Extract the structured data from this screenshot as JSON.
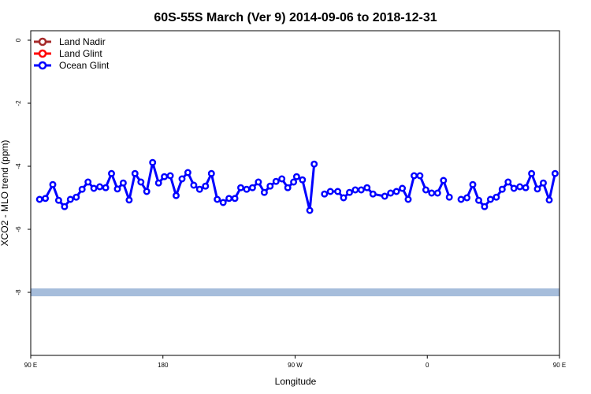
{
  "chart_data": {
    "type": "line",
    "title": "60S-55S March (Ver 9)   2014-09-06 to 2018-12-31",
    "xlabel": "Longitude",
    "ylabel": "XCO2 - MLO trend (ppm)",
    "xlim": [
      90,
      450
    ],
    "ylim": [
      -10,
      0.3
    ],
    "x_ticks": [
      {
        "value": 90,
        "label": "90 E"
      },
      {
        "value": 180,
        "label": "180"
      },
      {
        "value": 270,
        "label": "90 W"
      },
      {
        "value": 360,
        "label": "0"
      },
      {
        "value": 450,
        "label": "90 E"
      },
      {
        "value": 540,
        "label": "180"
      }
    ],
    "y_ticks": [
      {
        "value": 0,
        "label": "0"
      },
      {
        "value": -2,
        "label": "-2"
      },
      {
        "value": -4,
        "label": "-4"
      },
      {
        "value": -6,
        "label": "-6"
      },
      {
        "value": -8,
        "label": "-8"
      }
    ],
    "legend": {
      "placement": "top-left",
      "entries": [
        {
          "label": "Land Nadir",
          "color": "#a52a2a"
        },
        {
          "label": "Land Glint",
          "color": "#ff0000"
        },
        {
          "label": "Ocean Glint",
          "color": "#0000ff"
        }
      ]
    },
    "band": {
      "y_center": -8,
      "color": "#a6bddb"
    },
    "series": [
      {
        "name": "Ocean Glint",
        "color": "#0000ff",
        "segments": [
          [
            [
              96,
              -5.05
            ],
            [
              100,
              -5.02
            ],
            [
              105,
              -4.58
            ],
            [
              109,
              -5.08
            ],
            [
              113,
              -5.28
            ],
            [
              117,
              -5.05
            ],
            [
              121,
              -4.98
            ],
            [
              125,
              -4.73
            ],
            [
              129,
              -4.5
            ],
            [
              133,
              -4.7
            ],
            [
              137,
              -4.65
            ],
            [
              141,
              -4.68
            ],
            [
              145,
              -4.23
            ],
            [
              149,
              -4.72
            ],
            [
              153,
              -4.53
            ],
            [
              157,
              -5.07
            ],
            [
              161,
              -4.23
            ],
            [
              165,
              -4.5
            ],
            [
              169,
              -4.8
            ],
            [
              173,
              -3.88
            ],
            [
              177,
              -4.53
            ],
            [
              181,
              -4.33
            ],
            [
              185,
              -4.3
            ],
            [
              189,
              -4.93
            ],
            [
              193,
              -4.4
            ],
            [
              197,
              -4.2
            ],
            [
              201,
              -4.6
            ],
            [
              205,
              -4.73
            ],
            [
              209,
              -4.63
            ],
            [
              213,
              -4.23
            ],
            [
              217,
              -5.05
            ],
            [
              221,
              -5.15
            ],
            [
              225,
              -5.02
            ],
            [
              229,
              -5.02
            ],
            [
              233,
              -4.68
            ],
            [
              237,
              -4.73
            ],
            [
              241,
              -4.68
            ],
            [
              245,
              -4.5
            ],
            [
              249,
              -4.83
            ],
            [
              253,
              -4.63
            ],
            [
              257,
              -4.48
            ],
            [
              261,
              -4.4
            ],
            [
              265,
              -4.68
            ],
            [
              269,
              -4.5
            ],
            [
              271,
              -4.33
            ],
            [
              275,
              -4.43
            ],
            [
              280,
              -5.4
            ],
            [
              283,
              -3.93
            ]
          ],
          [
            [
              290,
              -4.88
            ],
            [
              294,
              -4.8
            ],
            [
              299,
              -4.8
            ],
            [
              303,
              -5.0
            ],
            [
              307,
              -4.83
            ],
            [
              311,
              -4.75
            ],
            [
              315,
              -4.75
            ],
            [
              319,
              -4.68
            ],
            [
              323,
              -4.88
            ],
            [
              331,
              -4.95
            ],
            [
              335,
              -4.85
            ],
            [
              339,
              -4.8
            ],
            [
              343,
              -4.7
            ],
            [
              347,
              -5.05
            ],
            [
              351,
              -4.3
            ],
            [
              355,
              -4.3
            ],
            [
              359,
              -4.75
            ],
            [
              363,
              -4.85
            ],
            [
              367,
              -4.85
            ],
            [
              371,
              -4.45
            ],
            [
              375,
              -4.98
            ]
          ],
          [
            [
              383,
              -5.05
            ],
            [
              387,
              -5.0
            ],
            [
              391,
              -4.58
            ],
            [
              395,
              -5.08
            ],
            [
              399,
              -5.28
            ],
            [
              403,
              -5.05
            ],
            [
              407,
              -4.98
            ],
            [
              411,
              -4.73
            ],
            [
              415,
              -4.5
            ],
            [
              419,
              -4.7
            ],
            [
              423,
              -4.65
            ],
            [
              427,
              -4.68
            ],
            [
              431,
              -4.23
            ],
            [
              435,
              -4.72
            ],
            [
              439,
              -4.53
            ],
            [
              443,
              -5.07
            ],
            [
              447,
              -4.23
            ]
          ]
        ]
      }
    ]
  }
}
